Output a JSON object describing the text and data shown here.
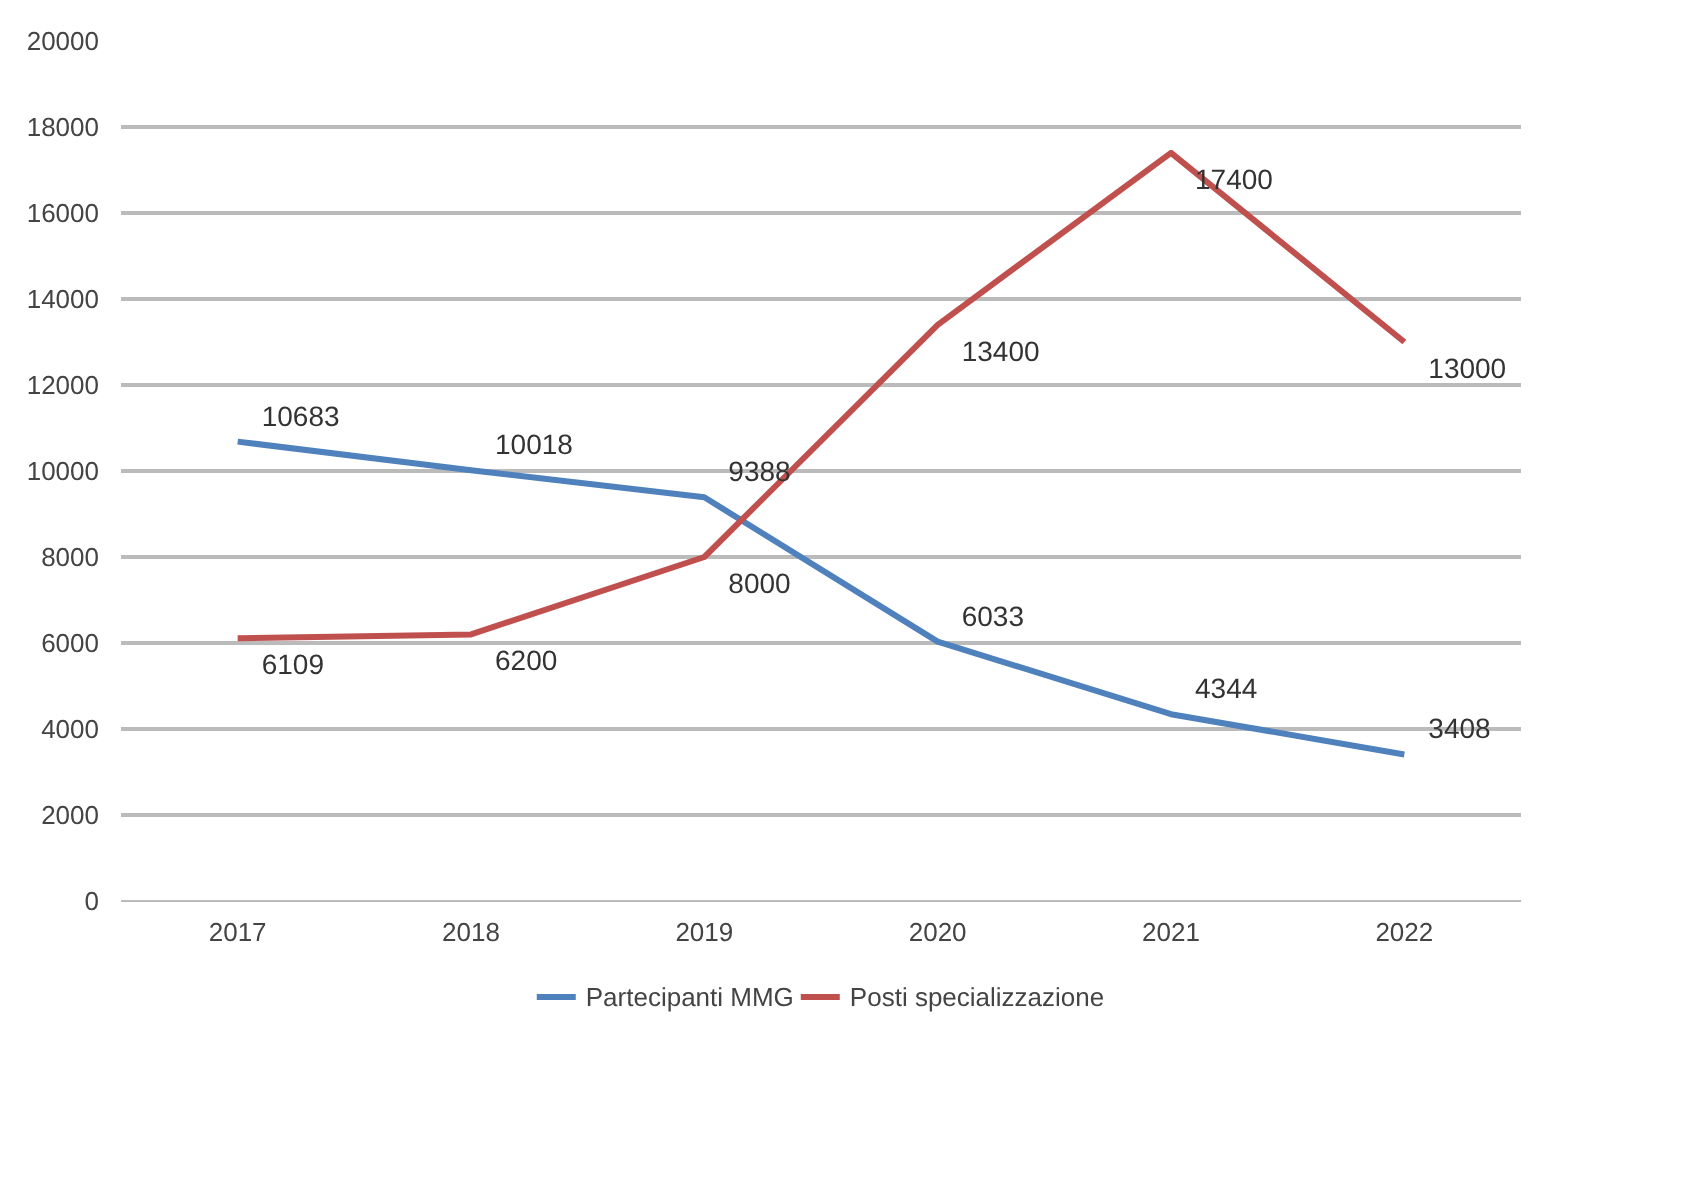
{
  "chart_data": {
    "type": "line",
    "categories": [
      "2017",
      "2018",
      "2019",
      "2020",
      "2021",
      "2022"
    ],
    "series": [
      {
        "name": "Partecipanti MMG",
        "color": "#4f81bd",
        "values": [
          10683,
          10018,
          9388,
          6033,
          4344,
          3408
        ]
      },
      {
        "name": "Posti specializzazione",
        "color": "#c0504d",
        "values": [
          6109,
          6200,
          8000,
          13400,
          17400,
          13000
        ]
      }
    ],
    "ylim": [
      0,
      20000
    ],
    "yticks": [
      0,
      2000,
      4000,
      6000,
      8000,
      10000,
      12000,
      14000,
      16000,
      18000,
      20000
    ],
    "grid": "y",
    "legend": "bottom",
    "data_labels": true,
    "line_style": "solid"
  }
}
